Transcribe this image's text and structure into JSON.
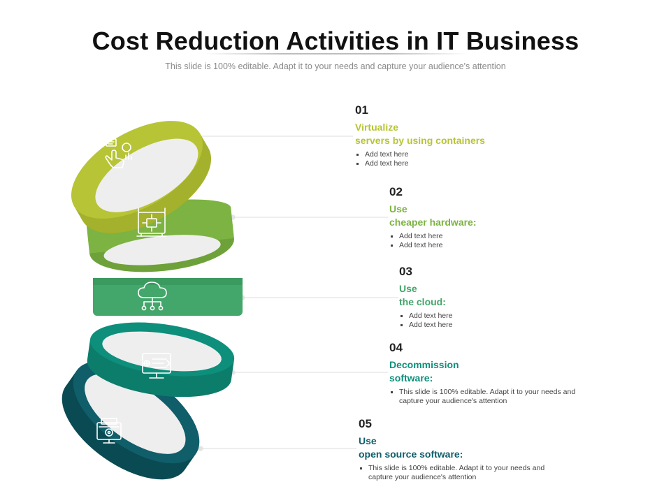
{
  "title": "Cost Reduction Activities in IT Business",
  "subtitle": "This slide is 100% editable. Adapt it to your needs and capture your audience's attention",
  "colors": {
    "ring1": "#b7c436",
    "ring2": "#7cb342",
    "ring3": "#43a66a",
    "ring4": "#0d8f7c",
    "ring5": "#0f5e6a"
  },
  "steps": [
    {
      "number": "01",
      "heading_line1": "Virtualize",
      "heading_line2": "servers by using containers",
      "bullets": [
        "Add text here",
        "Add text here"
      ],
      "icon": "hand-touch-chart-icon"
    },
    {
      "number": "02",
      "heading_line1": "Use",
      "heading_line2": "cheaper hardware:",
      "bullets": [
        "Add text here",
        "Add text here"
      ],
      "icon": "processor-chip-icon"
    },
    {
      "number": "03",
      "heading_line1": "Use",
      "heading_line2": "the cloud:",
      "bullets": [
        "Add text here",
        "Add text here"
      ],
      "icon": "cloud-network-icon"
    },
    {
      "number": "04",
      "heading_line1": "Decommission",
      "heading_line2": "software:",
      "bullets": [
        "This slide is 100% editable. Adapt it to your needs and capture your audience's attention"
      ],
      "icon": "monitor-code-icon"
    },
    {
      "number": "05",
      "heading_line1": "Use",
      "heading_line2": "open source software:",
      "bullets": [
        "This slide is 100% editable. Adapt it to your needs and capture your audience's attention"
      ],
      "icon": "desktop-settings-icon"
    }
  ]
}
